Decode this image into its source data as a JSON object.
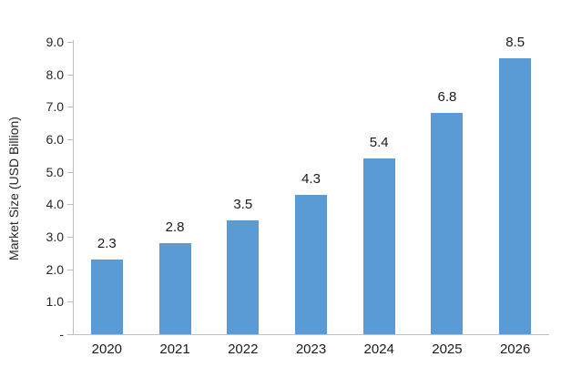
{
  "chart_data": {
    "type": "bar",
    "title": "",
    "xlabel": "",
    "ylabel": "Market Size (USD Billion)",
    "categories": [
      "2020",
      "2021",
      "2022",
      "2023",
      "2024",
      "2025",
      "2026"
    ],
    "series": [
      {
        "name": "Market Size",
        "values": [
          2.3,
          2.8,
          3.5,
          4.3,
          5.4,
          6.8,
          8.5
        ]
      }
    ],
    "data_labels": [
      "2.3",
      "2.8",
      "3.5",
      "4.3",
      "5.4",
      "6.8",
      "8.5"
    ],
    "ylim": [
      0,
      9
    ],
    "ytick_interval": 1.0,
    "ytick_labels": [
      "-",
      "1.0",
      "2.0",
      "3.0",
      "4.0",
      "5.0",
      "6.0",
      "7.0",
      "8.0",
      "9.0"
    ],
    "grid": false,
    "legend_position": "none",
    "colors": {
      "bar": "#5b9bd5",
      "axis": "#bfbfbf",
      "text": "#262626"
    }
  }
}
